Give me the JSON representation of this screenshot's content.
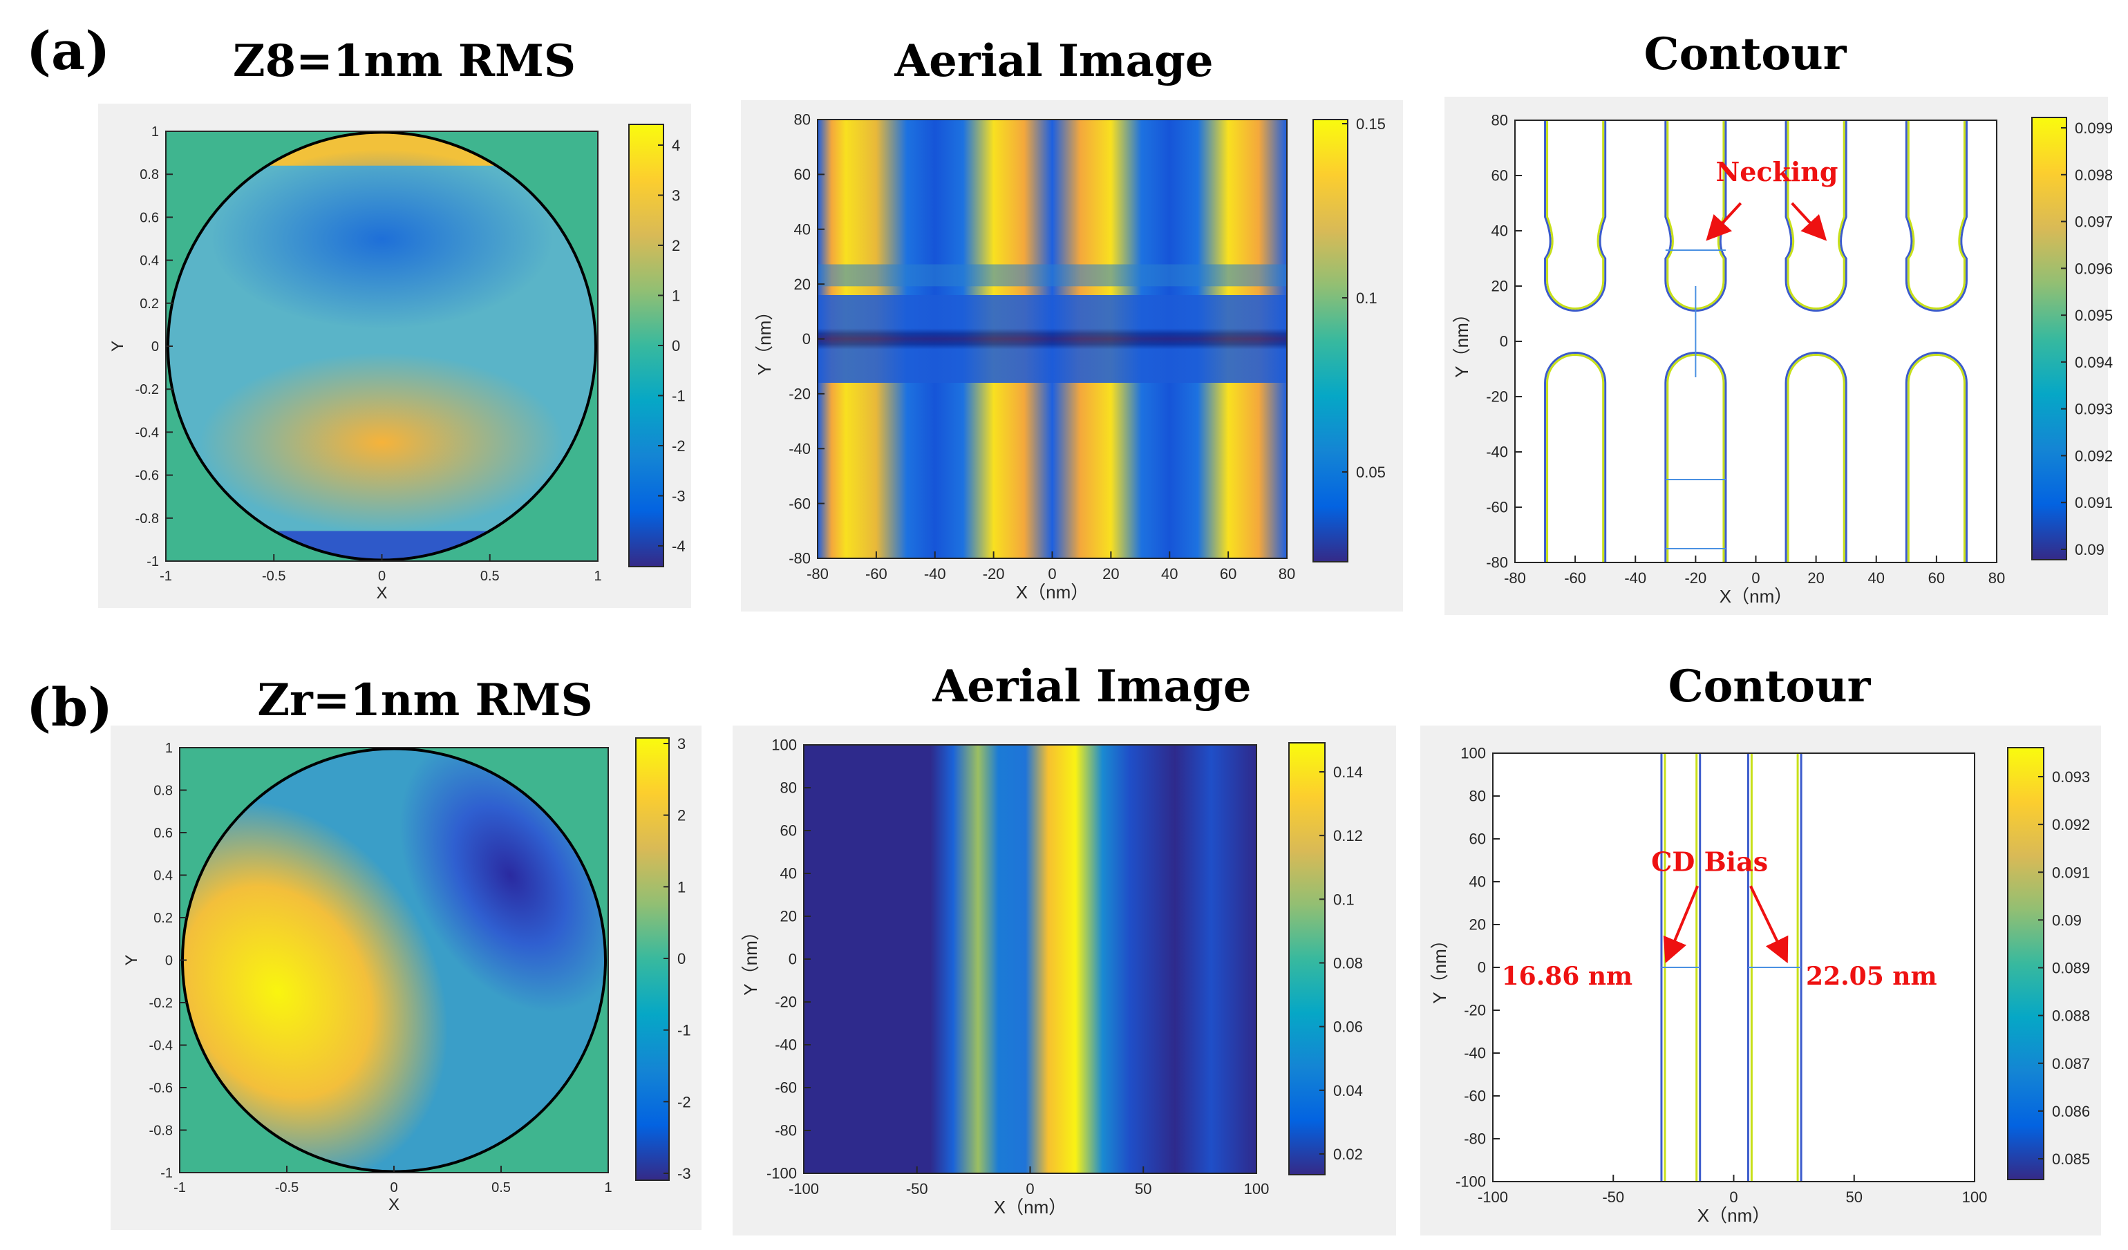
{
  "labels": {
    "a": "(a)",
    "b": "(b)"
  },
  "colors": {
    "parula": [
      "#352a87",
      "#0363e1",
      "#1485d4",
      "#06a7c6",
      "#38b99e",
      "#92bf73",
      "#d9ba56",
      "#fcce2e",
      "#f9fb0e"
    ],
    "panel_bg": "#f0f0f0",
    "contour_outer": "#3b5bcc",
    "contour_inner": "#c8e01a",
    "measure_line": "#4a90e2",
    "annotation": "#ee1111",
    "pupil_fill": "#3fb58f"
  },
  "panels": {
    "a_wavefront": {
      "title": "Z8=1nm RMS"
    },
    "a_aerial": {
      "title": "Aerial Image"
    },
    "a_contour": {
      "title": "Contour"
    },
    "b_wavefront": {
      "title": "Zr=1nm RMS"
    },
    "b_aerial": {
      "title": "Aerial Image"
    },
    "b_contour": {
      "title": "Contour"
    }
  },
  "annotations": {
    "necking": "Necking",
    "cd_bias": "CD Bias",
    "cd_left": "16.86 nm",
    "cd_right": "22.05 nm"
  },
  "chart_data": [
    {
      "type": "heatmap",
      "title": "Z8=1nm RMS",
      "xlabel": "X",
      "ylabel": "Y",
      "xlim": [
        -1,
        1
      ],
      "ylim": [
        -1,
        1
      ],
      "x_ticks": [
        "-1",
        "-0.5",
        "0",
        "0.5",
        "1"
      ],
      "y_ticks": [
        "1",
        "0.8",
        "0.6",
        "0.4",
        "0.2",
        "0",
        "-0.2",
        "-0.4",
        "-0.6",
        "-0.8",
        "-1"
      ],
      "colorbar": {
        "ticks": [
          "4",
          "3",
          "2",
          "1",
          "0",
          "-1",
          "-2",
          "-3",
          "-4"
        ],
        "range": [
          -4.5,
          4.5
        ]
      },
      "description_values": {
        "upper_lobe_min": -3,
        "lower_lobe_max": 3
      }
    },
    {
      "type": "heatmap",
      "title": "Aerial Image",
      "xlabel": "X（nm）",
      "ylabel": "Y（nm）",
      "xlim": [
        -80,
        80
      ],
      "ylim": [
        -80,
        80
      ],
      "x_ticks": [
        "-80",
        "-60",
        "-40",
        "-20",
        "0",
        "20",
        "40",
        "60",
        "80"
      ],
      "y_ticks": [
        "80",
        "60",
        "40",
        "20",
        "0",
        "-20",
        "-40",
        "-60",
        "-80"
      ],
      "colorbar": {
        "ticks": [
          "0.15",
          "0.1",
          "0.05"
        ],
        "range": [
          0.02,
          0.155
        ]
      },
      "line_centers_nm": [
        -60,
        -20,
        20,
        60
      ]
    },
    {
      "type": "line",
      "title": "Contour",
      "xlabel": "X（nm）",
      "ylabel": "Y（nm）",
      "xlim": [
        -80,
        80
      ],
      "ylim": [
        -80,
        80
      ],
      "x_ticks": [
        "-80",
        "-60",
        "-40",
        "-20",
        "0",
        "20",
        "40",
        "60",
        "80"
      ],
      "y_ticks": [
        "80",
        "60",
        "40",
        "20",
        "0",
        "-20",
        "-40",
        "-60",
        "-80"
      ],
      "colorbar": {
        "ticks": [
          "0.099",
          "0.098",
          "0.097",
          "0.096",
          "0.095",
          "0.094",
          "0.093",
          "0.092",
          "0.091",
          "0.09"
        ],
        "range": [
          0.0897,
          0.0993
        ]
      },
      "line_centers_nm": [
        -60,
        -20,
        20,
        60
      ],
      "line_halfwidth_nm": 10,
      "gap_y_nm": [
        -15,
        22
      ]
    },
    {
      "type": "heatmap",
      "title": "Zr=1nm RMS",
      "xlabel": "X",
      "ylabel": "Y",
      "xlim": [
        -1,
        1
      ],
      "ylim": [
        -1,
        1
      ],
      "x_ticks": [
        "-1",
        "-0.5",
        "0",
        "0.5",
        "1"
      ],
      "y_ticks": [
        "1",
        "0.8",
        "0.6",
        "0.4",
        "0.2",
        "0",
        "-0.2",
        "-0.4",
        "-0.6",
        "-0.8",
        "-1"
      ],
      "colorbar": {
        "ticks": [
          "3",
          "2",
          "1",
          "0",
          "-1",
          "-2",
          "-3"
        ],
        "range": [
          -3,
          3
        ]
      }
    },
    {
      "type": "heatmap",
      "title": "Aerial Image",
      "xlabel": "X（nm）",
      "ylabel": "Y（nm）",
      "xlim": [
        -100,
        100
      ],
      "ylim": [
        -100,
        100
      ],
      "x_ticks": [
        "-100",
        "-50",
        "0",
        "50",
        "100"
      ],
      "y_ticks": [
        "100",
        "80",
        "60",
        "40",
        "20",
        "0",
        "-20",
        "-40",
        "-60",
        "-80",
        "-100"
      ],
      "colorbar": {
        "ticks": [
          "0.14",
          "0.12",
          "0.1",
          "0.08",
          "0.06",
          "0.04",
          "0.02"
        ],
        "range": [
          0.015,
          0.148
        ]
      }
    },
    {
      "type": "line",
      "title": "Contour",
      "xlabel": "X（nm）",
      "ylabel": "Y（nm）",
      "xlim": [
        -100,
        100
      ],
      "ylim": [
        -100,
        100
      ],
      "x_ticks": [
        "-100",
        "-50",
        "0",
        "50",
        "100"
      ],
      "y_ticks": [
        "100",
        "80",
        "60",
        "40",
        "20",
        "0",
        "-20",
        "-40",
        "-60",
        "-80",
        "-100"
      ],
      "colorbar": {
        "ticks": [
          "0.093",
          "0.092",
          "0.091",
          "0.09",
          "0.089",
          "0.088",
          "0.087",
          "0.086",
          "0.085"
        ],
        "range": [
          0.0846,
          0.0937
        ]
      },
      "left_line_nm": [
        -30,
        -14
      ],
      "right_line_nm": [
        6,
        28
      ],
      "cd_values_nm": [
        16.86,
        22.05
      ]
    }
  ]
}
